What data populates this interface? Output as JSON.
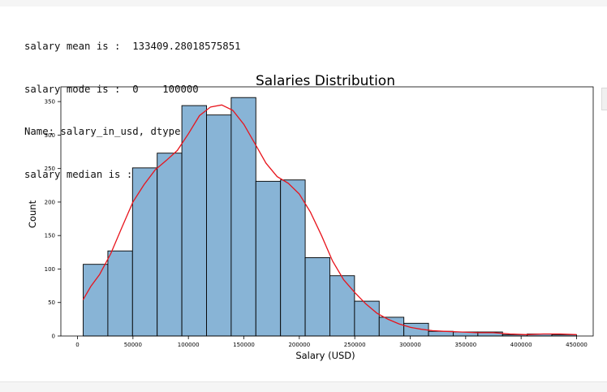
{
  "cell_output": {
    "lines": [
      "salary mean is :  133409.28018575851",
      "salary mode is :  0    100000",
      "Name: salary_in_usd, dtype: int64",
      "salary median is :  130000.0"
    ]
  },
  "chart_data": {
    "type": "bar",
    "title": "Salaries Distribution",
    "xlabel": "Salary (USD)",
    "ylabel": "Count",
    "xlim": [
      -15000,
      465000
    ],
    "ylim": [
      0,
      372
    ],
    "x_ticks": [
      0,
      50000,
      100000,
      150000,
      200000,
      250000,
      300000,
      350000,
      400000,
      450000
    ],
    "y_ticks": [
      0,
      50,
      100,
      150,
      200,
      250,
      300,
      350
    ],
    "bins": [
      {
        "start": 5132,
        "end": 27374,
        "count": 107
      },
      {
        "start": 27374,
        "end": 49615,
        "count": 127
      },
      {
        "start": 49615,
        "end": 71857,
        "count": 251
      },
      {
        "start": 71857,
        "end": 94098,
        "count": 273
      },
      {
        "start": 94098,
        "end": 116340,
        "count": 344
      },
      {
        "start": 116340,
        "end": 138581,
        "count": 330
      },
      {
        "start": 138581,
        "end": 160823,
        "count": 356
      },
      {
        "start": 160823,
        "end": 183064,
        "count": 231
      },
      {
        "start": 183064,
        "end": 205306,
        "count": 233
      },
      {
        "start": 205306,
        "end": 227547,
        "count": 117
      },
      {
        "start": 227547,
        "end": 249789,
        "count": 90
      },
      {
        "start": 249789,
        "end": 272030,
        "count": 52
      },
      {
        "start": 272030,
        "end": 294272,
        "count": 28
      },
      {
        "start": 294272,
        "end": 316513,
        "count": 19
      },
      {
        "start": 316513,
        "end": 338755,
        "count": 7
      },
      {
        "start": 338755,
        "end": 360996,
        "count": 6
      },
      {
        "start": 360996,
        "end": 383238,
        "count": 6
      },
      {
        "start": 383238,
        "end": 405479,
        "count": 2
      },
      {
        "start": 405479,
        "end": 427721,
        "count": 3
      },
      {
        "start": 427721,
        "end": 449962,
        "count": 2
      }
    ],
    "kde": [
      [
        5000,
        54
      ],
      [
        12000,
        74
      ],
      [
        20000,
        92
      ],
      [
        30000,
        123
      ],
      [
        40000,
        162
      ],
      [
        50000,
        200
      ],
      [
        60000,
        226
      ],
      [
        70000,
        248
      ],
      [
        80000,
        262
      ],
      [
        90000,
        277
      ],
      [
        100000,
        302
      ],
      [
        110000,
        329
      ],
      [
        120000,
        342
      ],
      [
        130000,
        345
      ],
      [
        140000,
        337
      ],
      [
        150000,
        316
      ],
      [
        160000,
        287
      ],
      [
        170000,
        258
      ],
      [
        180000,
        238
      ],
      [
        190000,
        228
      ],
      [
        200000,
        212
      ],
      [
        210000,
        185
      ],
      [
        220000,
        150
      ],
      [
        230000,
        112
      ],
      [
        240000,
        84
      ],
      [
        250000,
        65
      ],
      [
        260000,
        48
      ],
      [
        270000,
        34
      ],
      [
        280000,
        25
      ],
      [
        290000,
        18
      ],
      [
        300000,
        13
      ],
      [
        310000,
        10
      ],
      [
        320000,
        8
      ],
      [
        330000,
        7
      ],
      [
        345000,
        6
      ],
      [
        360000,
        5
      ],
      [
        375000,
        5
      ],
      [
        390000,
        3
      ],
      [
        405000,
        2
      ],
      [
        420000,
        3
      ],
      [
        435000,
        3
      ],
      [
        450000,
        2
      ]
    ],
    "colors": {
      "bar_fill": "#88b4d6",
      "bar_edge": "#000000",
      "kde_line": "#e8141c"
    },
    "grid": false,
    "legend": "none"
  }
}
